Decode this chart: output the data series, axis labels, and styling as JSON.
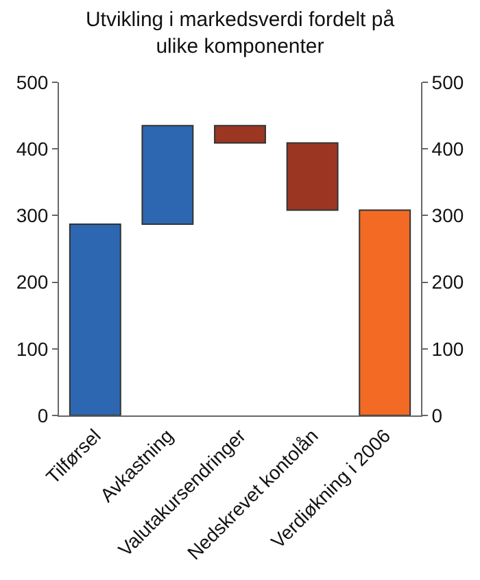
{
  "chart_data": {
    "type": "bar",
    "title": "Utvikling i markedsverdi fordelt på\nulike komponenter",
    "categories": [
      "Tilførsel",
      "Avkastning",
      "Valutakursendringer",
      "Nedskrevet kontolån",
      "Verdiøkning i 2006"
    ],
    "values": [
      287,
      148,
      -26,
      -101,
      308
    ],
    "base": [
      0,
      287,
      435,
      409,
      0
    ],
    "colors": [
      "#2e67b1",
      "#2e67b1",
      "#9b3622",
      "#9b3622",
      "#f26a24"
    ],
    "ylim": [
      0,
      500
    ],
    "yticks": [
      0,
      100,
      200,
      300,
      400,
      500
    ],
    "y2lim": [
      0,
      500
    ],
    "y2ticks": [
      0,
      100,
      200,
      300,
      400,
      500
    ]
  }
}
